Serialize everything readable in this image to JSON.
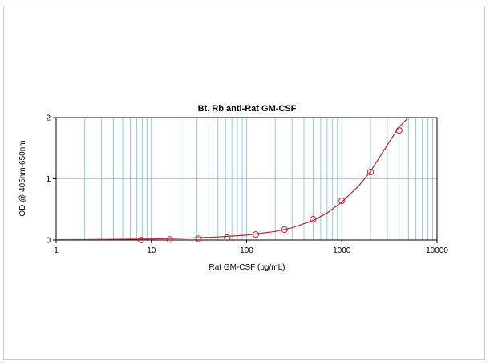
{
  "chart_data": {
    "type": "scatter",
    "title": "Bt. Rb anti-Rat GM-CSF",
    "xlabel": "Rat GM-CSF (pg/mL)",
    "ylabel": "OD @ 405nm-650nm",
    "x_scale": "log",
    "xlim": [
      1,
      10000
    ],
    "ylim": [
      0,
      2
    ],
    "x_ticks": [
      1,
      10,
      100,
      1000,
      10000
    ],
    "x_tick_labels": [
      "1",
      "10",
      "100",
      "1000",
      "10000"
    ],
    "y_ticks": [
      0,
      1,
      2
    ],
    "y_tick_labels": [
      "0",
      "1",
      "2"
    ],
    "grid": true,
    "series": [
      {
        "marker": "open-circle",
        "x": [
          7.8,
          15.6,
          31.3,
          62.5,
          125,
          250,
          500,
          1000,
          2000,
          4000
        ],
        "y": [
          0.0,
          0.01,
          0.02,
          0.04,
          0.09,
          0.17,
          0.34,
          0.64,
          1.11,
          1.79
        ]
      },
      {
        "type": "curve-fit",
        "x": [
          1,
          2,
          5,
          10,
          20,
          50,
          100,
          200,
          300,
          500,
          700,
          1000,
          1500,
          2000,
          3000,
          4000,
          5000
        ],
        "y": [
          0.005,
          0.007,
          0.012,
          0.017,
          0.027,
          0.05,
          0.08,
          0.14,
          0.2,
          0.32,
          0.44,
          0.62,
          0.88,
          1.12,
          1.55,
          1.85,
          2.0
        ]
      }
    ],
    "colors": {
      "grid": "#6ec4d8",
      "curve": "#b3272d",
      "marker": "#c8282d",
      "axis": "#000000",
      "frame_border": "#c9c9c9"
    }
  }
}
